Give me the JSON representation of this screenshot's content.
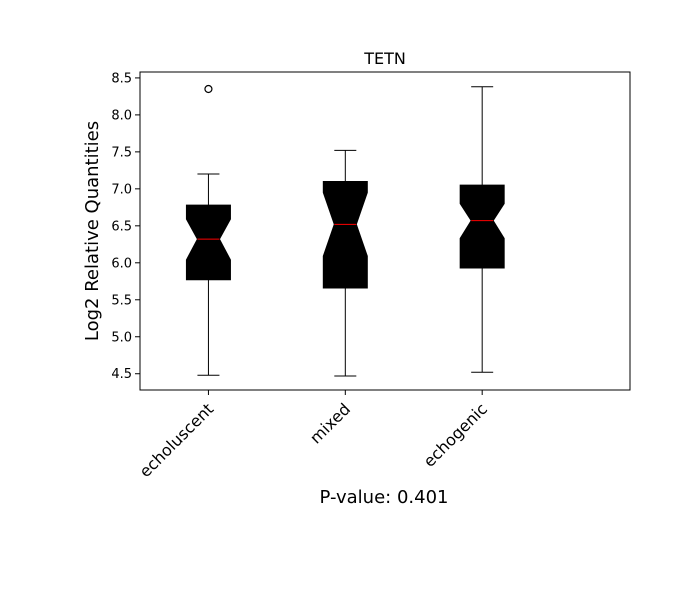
{
  "chart_data": {
    "type": "boxplot",
    "title": "TETN",
    "xlabel": "P-value: 0.401",
    "ylabel": "Log2 Relative Quantities",
    "categories": [
      "echoluscent",
      "mixed",
      "echogenic"
    ],
    "ylim": [
      4.28,
      8.58
    ],
    "yticks": [
      4.5,
      5.0,
      5.5,
      6.0,
      6.5,
      7.0,
      7.5,
      8.0,
      8.5
    ],
    "ytick_labels": [
      "4.5",
      "5.0",
      "5.5",
      "6.0",
      "6.5",
      "7.0",
      "7.5",
      "8.0",
      "8.5"
    ],
    "notched": true,
    "box_color": "#000000",
    "median_color": "#ff0000",
    "boxes": [
      {
        "name": "echoluscent",
        "whisker_low": 4.48,
        "q1": 5.77,
        "notch_low": 6.04,
        "median": 6.32,
        "notch_high": 6.59,
        "q3": 6.78,
        "whisker_high": 7.2,
        "fliers": [
          8.35
        ]
      },
      {
        "name": "mixed",
        "whisker_low": 4.47,
        "q1": 5.66,
        "notch_low": 6.09,
        "median": 6.52,
        "notch_high": 6.95,
        "q3": 7.1,
        "whisker_high": 7.52,
        "fliers": []
      },
      {
        "name": "echogenic",
        "whisker_low": 4.52,
        "q1": 5.93,
        "notch_low": 6.33,
        "median": 6.57,
        "notch_high": 6.8,
        "q3": 7.05,
        "whisker_high": 8.38,
        "fliers": []
      }
    ],
    "grid": false,
    "legend": false
  }
}
